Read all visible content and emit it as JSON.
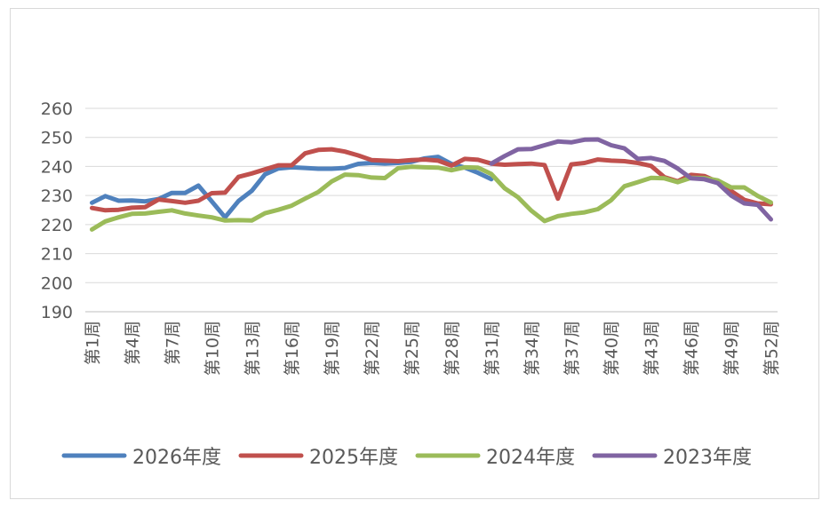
{
  "chart_data": {
    "type": "line",
    "title": "",
    "xlabel": "",
    "ylabel": "",
    "ylim": [
      190,
      260
    ],
    "yticks": [
      190,
      200,
      210,
      220,
      230,
      240,
      250,
      260
    ],
    "grid": "horizontal",
    "legend_position": "bottom",
    "categories": [
      "第1周",
      "第2周",
      "第3周",
      "第4周",
      "第5周",
      "第6周",
      "第7周",
      "第8周",
      "第9周",
      "第10周",
      "第11周",
      "第12周",
      "第13周",
      "第14周",
      "第15周",
      "第16周",
      "第17周",
      "第18周",
      "第19周",
      "第20周",
      "第21周",
      "第22周",
      "第23周",
      "第24周",
      "第25周",
      "第26周",
      "第27周",
      "第28周",
      "第29周",
      "第30周",
      "第31周",
      "第32周",
      "第33周",
      "第34周",
      "第35周",
      "第36周",
      "第37周",
      "第38周",
      "第39周",
      "第40周",
      "第41周",
      "第42周",
      "第43周",
      "第44周",
      "第45周",
      "第46周",
      "第47周",
      "第48周",
      "第49周",
      "第50周",
      "第51周",
      "第52周"
    ],
    "visible_tick_labels": [
      "第1周",
      "第4周",
      "第7周",
      "第10周",
      "第13周",
      "第16周",
      "第19周",
      "第22周",
      "第25周",
      "第28周",
      "第31周",
      "第34周",
      "第37周",
      "第40周",
      "第43周",
      "第46周",
      "第49周",
      "第52周"
    ],
    "series": [
      {
        "name": "2026年度",
        "color": "#4f81bd",
        "values": [
          227.5,
          229.8,
          228.2,
          228.3,
          228.0,
          228.8,
          230.9,
          230.9,
          233.4,
          228.0,
          222.5,
          228.1,
          231.6,
          237.3,
          239.3,
          239.7,
          239.5,
          239.2,
          239.2,
          239.5,
          240.9,
          241.2,
          241.0,
          241.2,
          241.6,
          242.8,
          243.3,
          240.9,
          239.6,
          237.8,
          235.6,
          null,
          null,
          null,
          null,
          null,
          null,
          null,
          null,
          null,
          null,
          null,
          null,
          null,
          null,
          null,
          null,
          null,
          null,
          null,
          null,
          null
        ]
      },
      {
        "name": "2025年度",
        "color": "#c0504d",
        "values": [
          225.7,
          224.9,
          225.1,
          225.8,
          226.0,
          228.6,
          228.1,
          227.5,
          228.2,
          230.8,
          231.0,
          236.4,
          237.6,
          239.0,
          240.4,
          240.4,
          244.5,
          245.7,
          245.9,
          245.1,
          243.8,
          242.2,
          242.0,
          241.8,
          242.2,
          242.4,
          242.0,
          240.3,
          242.6,
          242.3,
          241.0,
          240.6,
          240.8,
          241.0,
          240.5,
          228.9,
          240.7,
          241.2,
          242.4,
          242.0,
          241.8,
          241.2,
          240.2,
          236.3,
          234.9,
          237.1,
          236.7,
          234.7,
          231.6,
          228.5,
          227.3,
          227.0
        ]
      },
      {
        "name": "2024年度",
        "color": "#9bbb59",
        "values": [
          218.3,
          221.1,
          222.5,
          223.7,
          223.8,
          224.4,
          224.9,
          223.8,
          223.1,
          222.5,
          221.4,
          221.5,
          221.4,
          223.9,
          225.1,
          226.5,
          228.9,
          231.2,
          234.8,
          237.2,
          237.0,
          236.2,
          236.0,
          239.4,
          239.9,
          239.7,
          239.6,
          238.7,
          239.7,
          239.6,
          237.4,
          232.5,
          229.4,
          224.8,
          221.2,
          222.9,
          223.7,
          224.2,
          225.3,
          228.4,
          233.2,
          234.6,
          236.1,
          235.9,
          234.6,
          236.1,
          236.0,
          235.2,
          232.8,
          232.8,
          229.9,
          227.6
        ]
      },
      {
        "name": "2023年度",
        "color": "#8064a2",
        "values": [
          null,
          null,
          null,
          null,
          null,
          null,
          null,
          null,
          null,
          null,
          null,
          null,
          null,
          null,
          null,
          null,
          null,
          null,
          null,
          null,
          null,
          null,
          null,
          null,
          null,
          null,
          null,
          null,
          null,
          null,
          241.0,
          243.6,
          245.9,
          246.0,
          247.3,
          248.6,
          248.3,
          249.2,
          249.3,
          247.3,
          246.2,
          242.6,
          242.9,
          241.9,
          239.3,
          235.9,
          235.6,
          234.3,
          230.0,
          227.3,
          226.8,
          221.8
        ]
      }
    ]
  }
}
